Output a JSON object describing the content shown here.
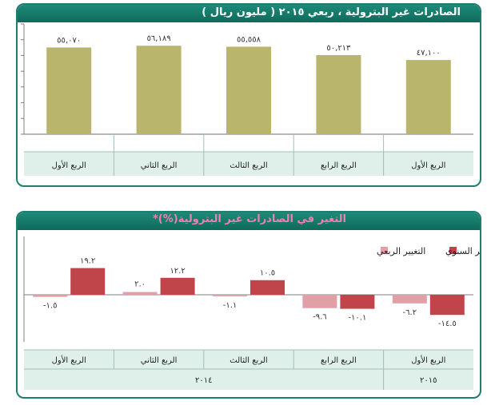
{
  "colors": {
    "frame": "#1f7f6f",
    "banner": "#14786a",
    "bar_olive": "#b9b56c",
    "annual": "#c0454a",
    "quarterly": "#e0a0a6",
    "category_band": "#dff0ea"
  },
  "chart_data": [
    {
      "type": "bar",
      "title": "الصادرات غير البترولية ، ربعي ٢٠١٥ ( مليون ريال )",
      "categories": [
        "الربع الأول",
        "الربع الثاني",
        "الربع الثالث",
        "الربع الرابع",
        "الربع الأول"
      ],
      "values": [
        55070,
        56189,
        55558,
        50213,
        47100
      ],
      "value_labels": [
        "٥٥,٠٧٠",
        "٥٦,١٨٩",
        "٥٥,٥٥٨",
        "٥٠,٢١٣",
        "٤٧,١٠٠"
      ],
      "ylim": [
        0,
        70000
      ],
      "grid": false,
      "legend": "none"
    },
    {
      "type": "bar",
      "title": "التغير في الصادرات غير البترولية(%)*",
      "categories": [
        "الربع الأول",
        "الربع الثاني",
        "الربع الثالث",
        "الربع الرابع",
        "الربع الأول"
      ],
      "year_labels": [
        "٢٠١٤",
        "٢٠١٥"
      ],
      "series": [
        {
          "name": "التغيير الربعي",
          "values": [
            -1.5,
            2.0,
            -1.1,
            -9.6,
            -6.2
          ],
          "labels": [
            "-١.٥",
            "٢.٠",
            "-١.١",
            "-٩.٦",
            "-٦.٢"
          ]
        },
        {
          "name": "التغيير السنوي",
          "values": [
            19.2,
            12.2,
            10.5,
            -10.1,
            -14.5
          ],
          "labels": [
            "١٩.٢",
            "١٢.٢",
            "١٠.٥",
            "-١٠.١",
            "-١٤.٥"
          ]
        }
      ],
      "ylim": [
        -20,
        25
      ],
      "grid": false,
      "legend": "top-right"
    }
  ]
}
